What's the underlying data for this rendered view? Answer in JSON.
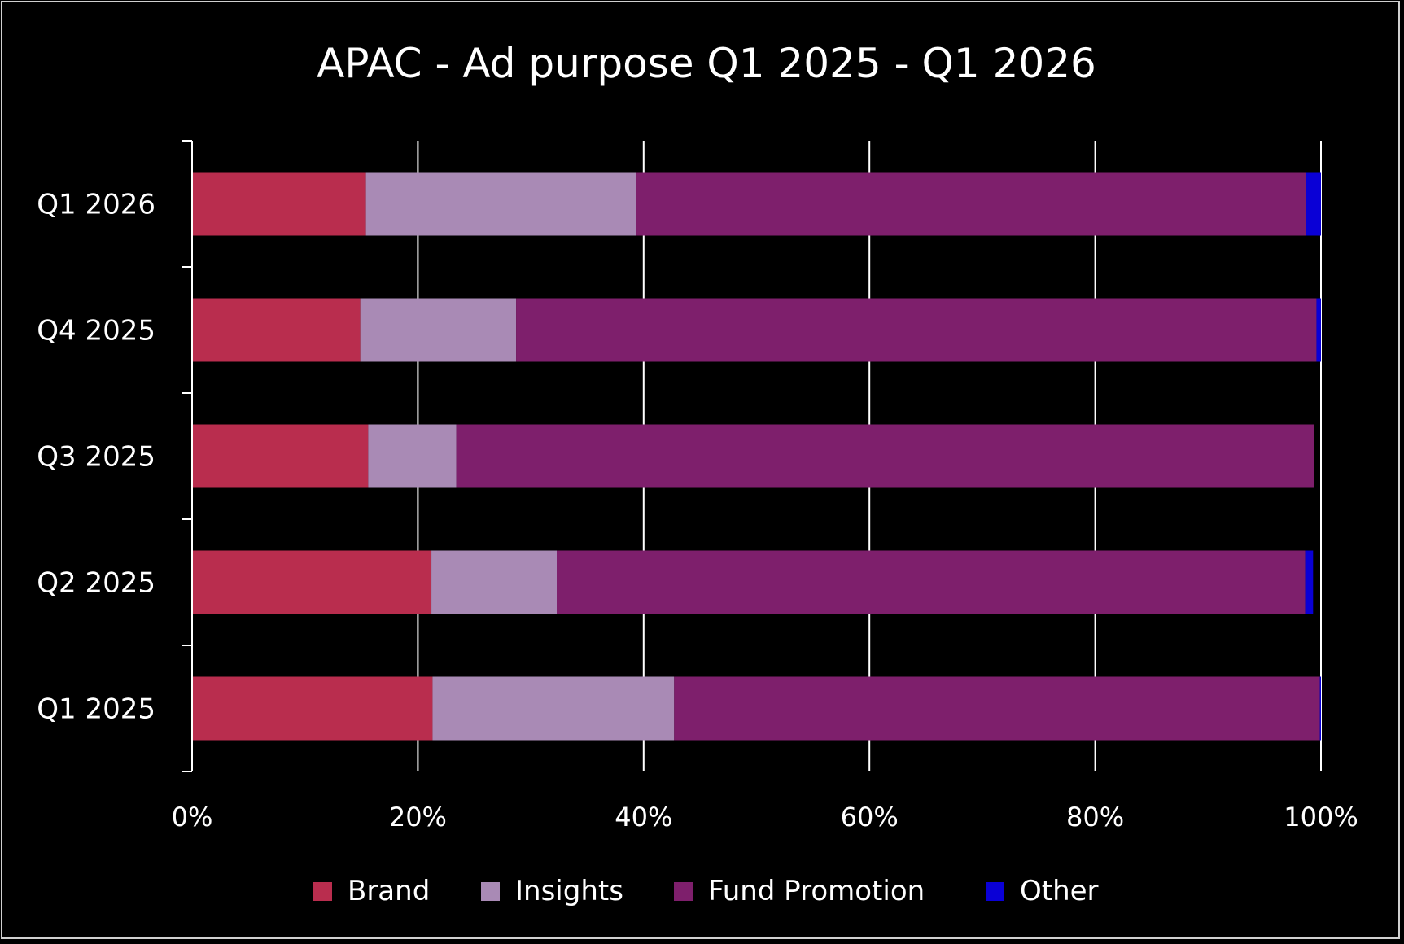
{
  "chart_data": {
    "type": "bar",
    "orientation": "horizontal",
    "stacked": true,
    "title": "APAC - Ad purpose Q1 2025 - Q1 2026",
    "xlabel": "",
    "ylabel": "",
    "xlim": [
      0,
      100
    ],
    "x_ticks": [
      "0%",
      "20%",
      "40%",
      "60%",
      "80%",
      "100%"
    ],
    "grid": "vertical",
    "legend_position": "bottom",
    "categories": [
      "Q1 2026",
      "Q4 2025",
      "Q3 2025",
      "Q2 2025",
      "Q1 2025"
    ],
    "series": [
      {
        "name": "Brand",
        "color": "#b92d4e",
        "values": [
          15.4,
          14.9,
          15.6,
          21.2,
          21.3
        ]
      },
      {
        "name": "Insights",
        "color": "#a98ab5",
        "values": [
          23.9,
          13.8,
          7.8,
          11.1,
          21.4
        ]
      },
      {
        "name": "Fund Promotion",
        "color": "#7e1f6c",
        "values": [
          59.4,
          70.9,
          76.0,
          66.3,
          57.2
        ]
      },
      {
        "name": "Other",
        "color": "#0a00d6",
        "values": [
          1.3,
          0.4,
          0.0,
          0.7,
          0.1
        ]
      }
    ]
  }
}
